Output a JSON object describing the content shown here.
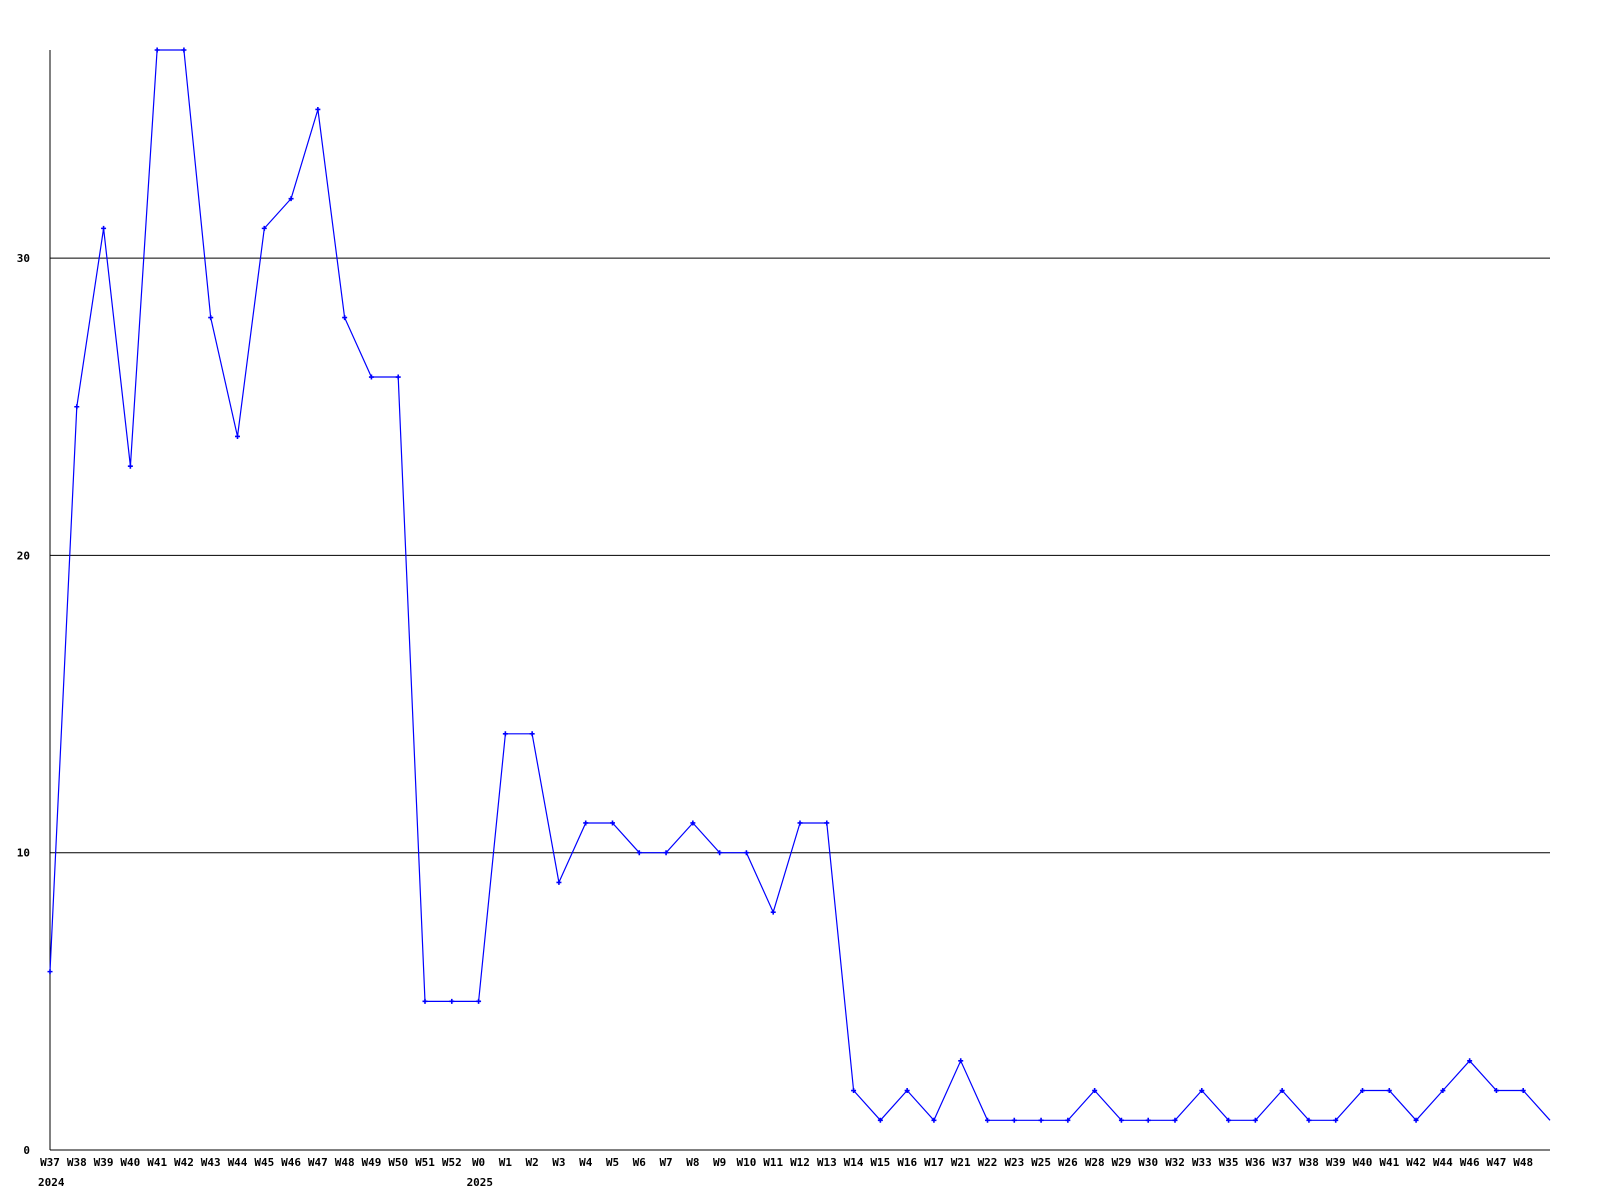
{
  "chart_data": {
    "type": "line",
    "title": "",
    "xlabel": "",
    "ylabel": "",
    "ylim": [
      0,
      37
    ],
    "yticks": [
      0,
      10,
      20,
      30
    ],
    "grid": "horizontal",
    "line_color": "#0000ff",
    "categories": [
      "W37",
      "W38",
      "W39",
      "W40",
      "W41",
      "W42",
      "W43",
      "W44",
      "W45",
      "W46",
      "W47",
      "W48",
      "W49",
      "W50",
      "W51",
      "W52",
      "W0",
      "W1",
      "W2",
      "W3",
      "W4",
      "W5",
      "W6",
      "W7",
      "W8",
      "W9",
      "W10",
      "W11",
      "W12",
      "W13",
      "W14",
      "W15",
      "W16",
      "W17",
      "W21",
      "W22",
      "W23",
      "W25",
      "W26",
      "W28",
      "W29",
      "W30",
      "W32",
      "W33",
      "W35",
      "W36",
      "W37",
      "W38",
      "W39",
      "W40",
      "W41",
      "W42",
      "W44",
      "W46",
      "W47",
      "W48",
      ""
    ],
    "year_labels": [
      {
        "index": 0,
        "label": "2024"
      },
      {
        "index": 16,
        "label": "2025"
      }
    ],
    "values": [
      6,
      25,
      31,
      23,
      37,
      37,
      28,
      24,
      31,
      32,
      35,
      28,
      26,
      26,
      5,
      5,
      5,
      14,
      14,
      9,
      11,
      11,
      10,
      10,
      11,
      10,
      10,
      8,
      11,
      11,
      2,
      1,
      2,
      1,
      3,
      1,
      1,
      1,
      1,
      2,
      1,
      1,
      1,
      2,
      1,
      1,
      2,
      1,
      1,
      2,
      2,
      1,
      2,
      3,
      2,
      2,
      1
    ]
  }
}
